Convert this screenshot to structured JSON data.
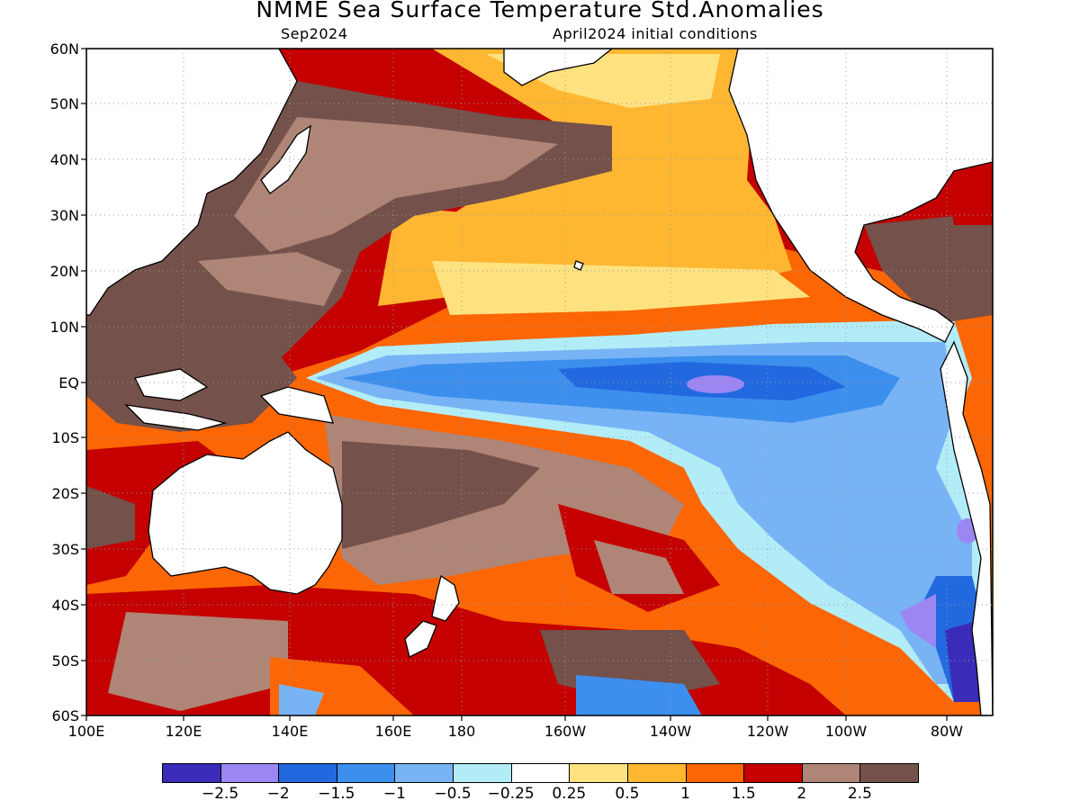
{
  "title": "NMME Sea Surface Temperature Std.Anomalies",
  "subtitle_left": "Sep2024",
  "subtitle_right": "April2024 initial conditions",
  "y_ticks": [
    "60N",
    "50N",
    "40N",
    "30N",
    "20N",
    "10N",
    "EQ",
    "10S",
    "20S",
    "30S",
    "40S",
    "50S",
    "60S"
  ],
  "x_ticks": [
    "100E",
    "120E",
    "140E",
    "160E",
    "180",
    "160W",
    "140W",
    "120W",
    "100W",
    "80W"
  ],
  "colorbar": {
    "colors": [
      "#3a2cb8",
      "#9b86f2",
      "#2269e0",
      "#3d8fee",
      "#78b4f5",
      "#b2ecf7",
      "#ffffff",
      "#fee280",
      "#ffb731",
      "#fc6605",
      "#c40000",
      "#ae8577",
      "#74514a"
    ],
    "labels": [
      "−2.5",
      "−2",
      "−1.5",
      "−1",
      "−0.5",
      "−0.25",
      "0.25",
      "0.5",
      "1",
      "1.5",
      "2",
      "2.5"
    ]
  },
  "map_data": {
    "type": "sea-surface-temperature-anomaly",
    "lon_range": [
      "100E",
      "70W"
    ],
    "lat_range": [
      "60S",
      "60N"
    ],
    "grid": true
  }
}
